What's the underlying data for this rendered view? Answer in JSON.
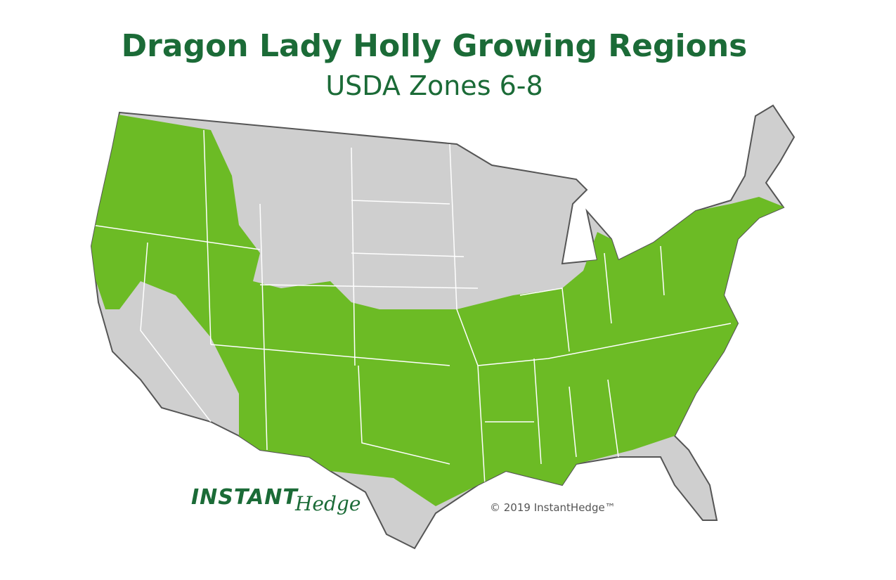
{
  "header": {
    "title": "Dragon Lady Holly Growing Regions",
    "subtitle": "USDA Zones 6-8"
  },
  "logo": {
    "brand": "INSTANT",
    "script": "Hedge"
  },
  "copyright": "© 2019 InstantHedge™"
}
